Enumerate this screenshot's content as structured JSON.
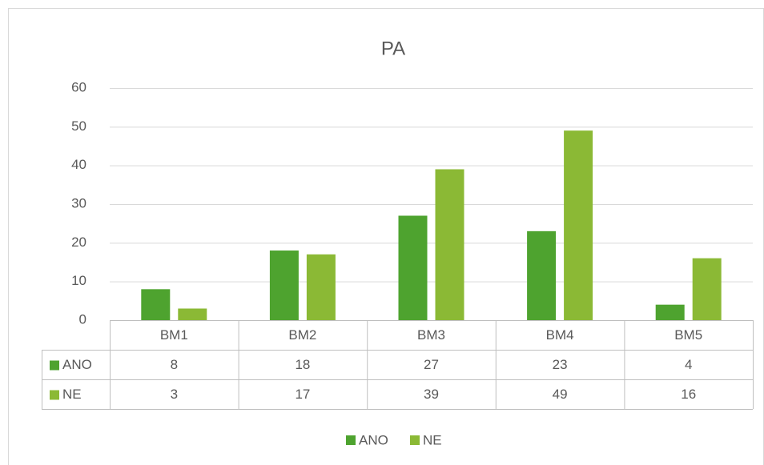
{
  "chart_data": {
    "type": "bar",
    "title": "PA",
    "categories": [
      "BM1",
      "BM2",
      "BM3",
      "BM4",
      "BM5"
    ],
    "series": [
      {
        "name": "ANO",
        "color": "#4ea32f",
        "values": [
          8,
          18,
          27,
          23,
          4
        ]
      },
      {
        "name": "NE",
        "color": "#8bb935",
        "values": [
          3,
          17,
          39,
          49,
          16
        ]
      }
    ],
    "ylim": [
      0,
      60
    ],
    "yticks": [
      0,
      10,
      20,
      30,
      40,
      50,
      60
    ],
    "grid": true,
    "legend": "bottom",
    "data_table": true
  }
}
